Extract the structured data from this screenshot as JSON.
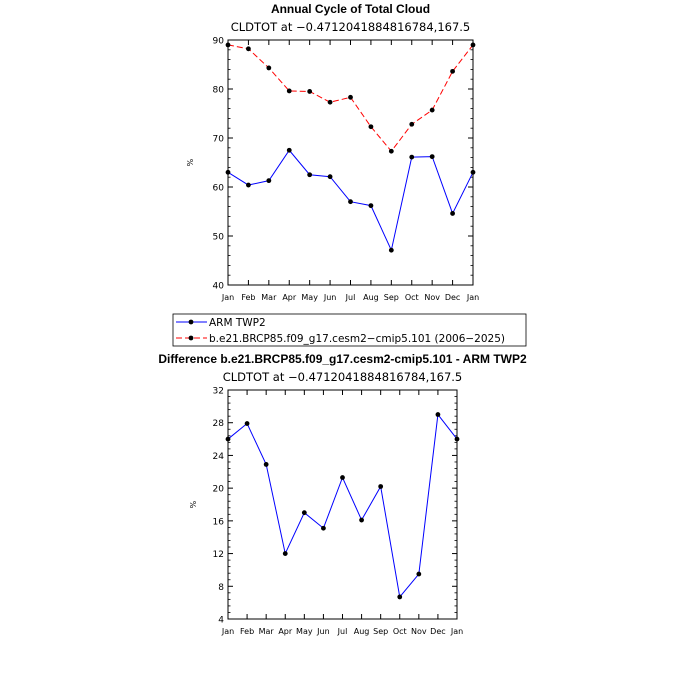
{
  "chart_data": [
    {
      "type": "line",
      "title": "Annual Cycle of Total Cloud",
      "subtitle": "CLDTOT at −0.4712041884816784,167.5",
      "xlabel": "",
      "ylabel": "%",
      "categories": [
        "Jan",
        "Feb",
        "Mar",
        "Apr",
        "May",
        "Jun",
        "Jul",
        "Aug",
        "Sep",
        "Oct",
        "Nov",
        "Dec",
        "Jan"
      ],
      "ylim": [
        40,
        90
      ],
      "yticks": [
        40,
        50,
        60,
        70,
        80,
        90
      ],
      "grid": false,
      "legend_placement": "bottom-left",
      "series": [
        {
          "name": "ARM TWP2",
          "color": "#0000ff",
          "dash": "solid",
          "values": [
            63.0,
            60.4,
            61.3,
            67.5,
            62.5,
            62.1,
            57.0,
            56.2,
            47.1,
            66.1,
            66.2,
            54.6,
            63.0
          ]
        },
        {
          "name": "b.e21.BRCP85.f09_g17.cesm2−cmip5.101 (2006−2025)",
          "color": "#ff0000",
          "dash": "dashed",
          "values": [
            89.0,
            88.2,
            84.3,
            79.6,
            79.5,
            77.3,
            78.3,
            72.3,
            67.3,
            72.8,
            75.7,
            83.6,
            89.0
          ]
        }
      ]
    },
    {
      "type": "line",
      "title": "Difference b.e21.BRCP85.f09_g17.cesm2-cmip5.101 - ARM TWP2",
      "subtitle": "CLDTOT at −0.4712041884816784,167.5",
      "xlabel": "",
      "ylabel": "%",
      "categories": [
        "Jan",
        "Feb",
        "Mar",
        "Apr",
        "May",
        "Jun",
        "Jul",
        "Aug",
        "Sep",
        "Oct",
        "Nov",
        "Dec",
        "Jan"
      ],
      "ylim": [
        4,
        32
      ],
      "yticks": [
        4,
        8,
        12,
        16,
        20,
        24,
        28,
        32
      ],
      "grid": false,
      "series": [
        {
          "color": "#0000ff",
          "dash": "solid",
          "values": [
            26.0,
            27.9,
            22.9,
            12.0,
            17.0,
            15.1,
            21.3,
            16.1,
            20.2,
            6.7,
            9.5,
            29.0,
            26.0
          ]
        }
      ]
    }
  ]
}
